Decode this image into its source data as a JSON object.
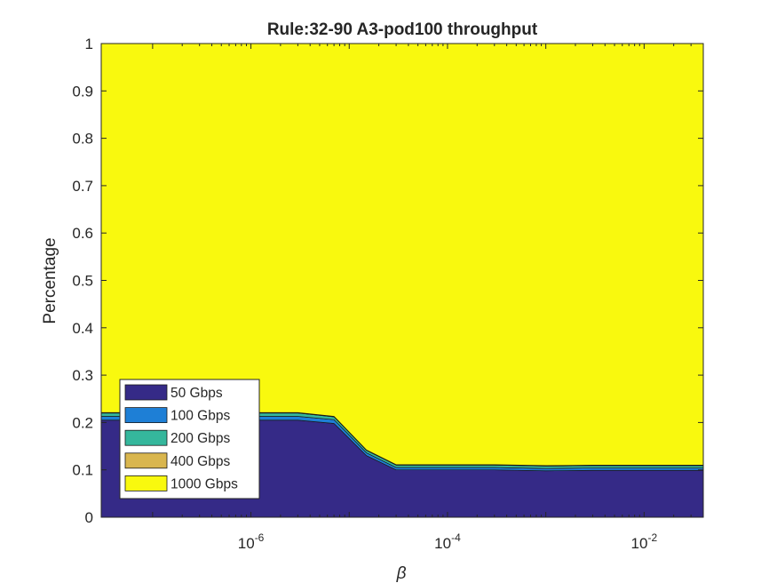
{
  "chart_data": {
    "type": "area",
    "title": "Rule:32-90 A3-pod100 throughput",
    "xlabel": "β",
    "ylabel": "Percentage",
    "x_scale": "log",
    "xlim": [
      3e-08,
      0.04
    ],
    "ylim": [
      0,
      1
    ],
    "x_ticks": [
      {
        "value": 1e-06,
        "base": "10",
        "exp": "-6"
      },
      {
        "value": 0.0001,
        "base": "10",
        "exp": "-4"
      },
      {
        "value": 0.01,
        "base": "10",
        "exp": "-2"
      }
    ],
    "y_ticks": [
      "0",
      "0.1",
      "0.2",
      "0.3",
      "0.4",
      "0.5",
      "0.6",
      "0.7",
      "0.8",
      "0.9",
      "1"
    ],
    "y_tick_values": [
      0,
      0.1,
      0.2,
      0.3,
      0.4,
      0.5,
      0.6,
      0.7,
      0.8,
      0.9,
      1
    ],
    "x": [
      3e-08,
      1e-07,
      3e-07,
      1e-06,
      3e-06,
      7e-06,
      1.5e-05,
      3e-05,
      0.0001,
      0.0003,
      0.001,
      0.003,
      0.01,
      0.04
    ],
    "stacked": true,
    "grid": false,
    "legend_position": "bottom-left",
    "series": [
      {
        "name": "50 Gbps",
        "color": "#352a87",
        "values": [
          0.205,
          0.205,
          0.205,
          0.205,
          0.205,
          0.198,
          0.13,
          0.1,
          0.1,
          0.1,
          0.098,
          0.099,
          0.099,
          0.099
        ]
      },
      {
        "name": "100 Gbps",
        "color": "#1e7fd6",
        "values": [
          0.008,
          0.008,
          0.008,
          0.008,
          0.008,
          0.008,
          0.006,
          0.005,
          0.005,
          0.005,
          0.005,
          0.005,
          0.005,
          0.005
        ]
      },
      {
        "name": "200 Gbps",
        "color": "#35b79c",
        "values": [
          0.007,
          0.007,
          0.007,
          0.007,
          0.007,
          0.006,
          0.005,
          0.005,
          0.005,
          0.005,
          0.005,
          0.005,
          0.005,
          0.005
        ]
      },
      {
        "name": "400 Gbps",
        "color": "#d9b64e",
        "values": [
          0.001,
          0.001,
          0.001,
          0.001,
          0.001,
          0.001,
          0.001,
          0.001,
          0.001,
          0.001,
          0.001,
          0.001,
          0.001,
          0.001
        ]
      },
      {
        "name": "1000 Gbps",
        "color": "#f9f90e",
        "values": [
          0.779,
          0.779,
          0.779,
          0.779,
          0.779,
          0.787,
          0.858,
          0.889,
          0.889,
          0.889,
          0.891,
          0.89,
          0.89,
          0.89
        ]
      }
    ]
  }
}
